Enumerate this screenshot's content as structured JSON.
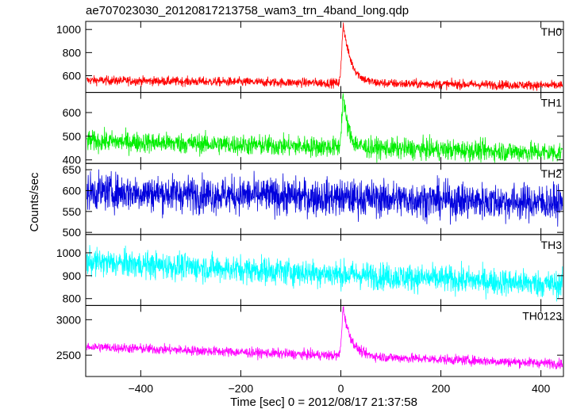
{
  "title": "ae707023030_20120817213758_wam3_trn_4band_long.qdp",
  "ylabel": "Counts/sec",
  "xlabel": "Time [sec] 0 = 2012/08/17 21:37:58",
  "chart_data": {
    "type": "line",
    "xlim": [
      -510,
      445
    ],
    "x_ticks": [
      -400,
      -200,
      0,
      200,
      400
    ],
    "panels": [
      {
        "name": "TH0",
        "color": "#ff0000",
        "ylim": [
          455,
          1070
        ],
        "y_ticks": [
          600,
          800,
          1000
        ],
        "baseline_start": 560,
        "baseline_end": 515,
        "noise": 20,
        "peak": 1040,
        "peak_x": 5,
        "rise": 3,
        "decay": 16
      },
      {
        "name": "TH1",
        "color": "#00ee00",
        "ylim": [
          385,
          685
        ],
        "y_ticks": [
          400,
          500,
          600
        ],
        "baseline_start": 480,
        "baseline_end": 430,
        "noise": 22,
        "peak": 670,
        "peak_x": 5,
        "rise": 3,
        "decay": 10
      },
      {
        "name": "TH2",
        "color": "#0000dd",
        "ylim": [
          495,
          665
        ],
        "y_ticks": [
          500,
          550,
          600,
          650
        ],
        "baseline_start": 598,
        "baseline_end": 570,
        "noise": 22,
        "peak": 0,
        "peak_x": 5,
        "rise": 3,
        "decay": 10
      },
      {
        "name": "TH3",
        "color": "#00ffff",
        "ylim": [
          770,
          1080
        ],
        "y_ticks": [
          800,
          900,
          1000
        ],
        "baseline_start": 960,
        "baseline_end": 860,
        "noise": 30,
        "peak": 0,
        "peak_x": 5,
        "rise": 3,
        "decay": 10
      },
      {
        "name": "TH0123",
        "color": "#ff00ff",
        "ylim": [
          2200,
          3200
        ],
        "y_ticks": [
          2500,
          3000
        ],
        "baseline_start": 2620,
        "baseline_end": 2380,
        "noise": 35,
        "peak": 3150,
        "peak_x": 5,
        "rise": 3,
        "decay": 16
      }
    ]
  }
}
